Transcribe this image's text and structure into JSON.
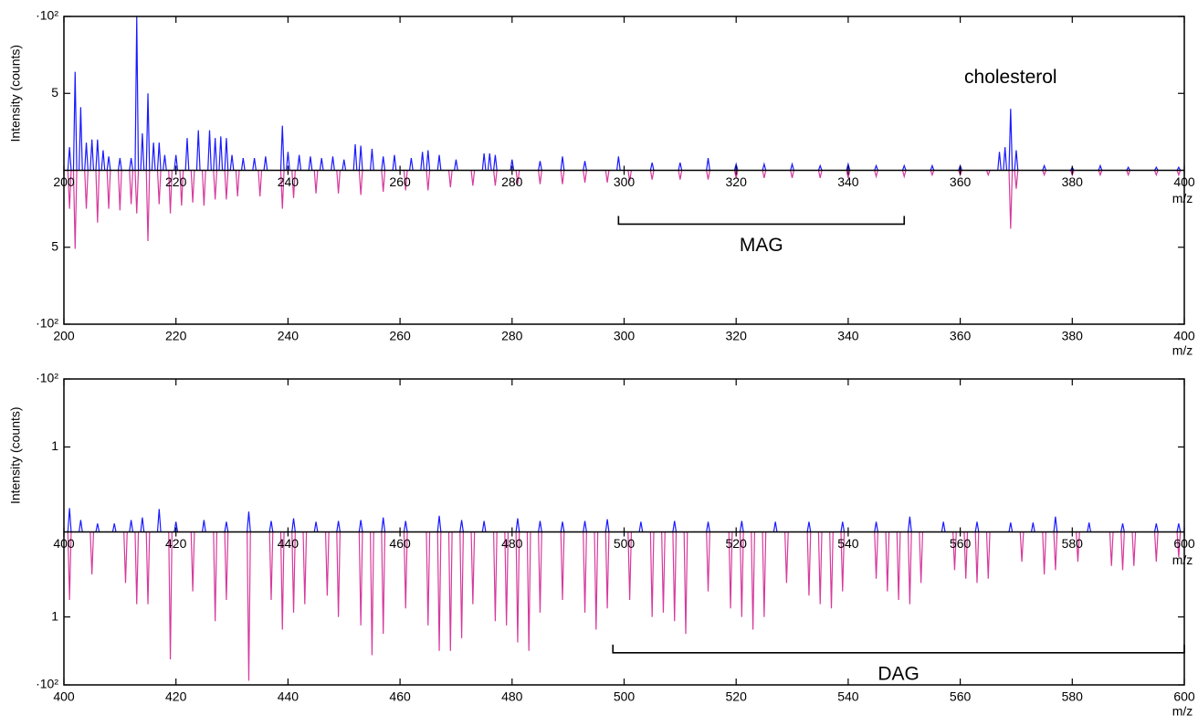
{
  "chart_data": [
    {
      "type": "spectrum",
      "xlabel": "m/z",
      "ylabel": "Intensity (counts)",
      "xlim": [
        200,
        400
      ],
      "xticks": [
        200,
        220,
        240,
        260,
        280,
        300,
        320,
        340,
        360,
        380,
        400
      ],
      "ylim": [
        -10,
        10
      ],
      "yticks": [
        {
          "value": 10,
          "label": "·10²"
        },
        5,
        {
          "value": -5,
          "label": "5"
        },
        {
          "value": -10,
          "label": "·10²"
        }
      ],
      "series": [
        {
          "color": "#1a1aff",
          "x": [
            201,
            202,
            203,
            204,
            205,
            206,
            207,
            208,
            210,
            212,
            213,
            214,
            215,
            216,
            217,
            218,
            220,
            222,
            224,
            226,
            227,
            228,
            229,
            230,
            232,
            234,
            236,
            239,
            240,
            242,
            244,
            246,
            248,
            250,
            252,
            253,
            255,
            257,
            259,
            262,
            264,
            265,
            267,
            270,
            275,
            276,
            277,
            280,
            285,
            289,
            293,
            299,
            305,
            310,
            315,
            320,
            325,
            330,
            335,
            340,
            345,
            350,
            355,
            360,
            367,
            368,
            369,
            370,
            375,
            380,
            385,
            390,
            395,
            399
          ],
          "values": [
            1.5,
            6.4,
            4.1,
            1.8,
            2,
            2,
            1.3,
            0.9,
            0.8,
            0.8,
            10,
            2.4,
            5,
            1.8,
            1.8,
            1,
            1,
            2.1,
            2.6,
            2.6,
            2.1,
            2.2,
            2.1,
            1,
            0.8,
            0.8,
            0.9,
            2.9,
            1.2,
            1,
            0.9,
            0.8,
            0.9,
            0.7,
            1.7,
            1.6,
            1.4,
            0.9,
            1,
            0.8,
            1.2,
            1.3,
            1,
            0.7,
            1.1,
            1.1,
            1,
            0.7,
            0.6,
            0.9,
            0.6,
            0.9,
            0.5,
            0.5,
            0.8,
            0.4,
            0.4,
            0.4,
            0.3,
            0.4,
            0.3,
            0.3,
            0.3,
            0.3,
            1.2,
            1.5,
            4,
            1.3,
            0.3,
            0.2,
            0.3,
            0.2,
            0.2,
            0.2
          ]
        },
        {
          "color": "#d63a9c",
          "x": [
            201,
            202,
            204,
            206,
            208,
            210,
            212,
            213,
            215,
            217,
            219,
            221,
            223,
            225,
            227,
            229,
            231,
            235,
            239,
            241,
            245,
            249,
            253,
            257,
            261,
            265,
            269,
            273,
            277,
            281,
            285,
            289,
            293,
            297,
            301,
            305,
            310,
            315,
            320,
            325,
            330,
            335,
            340,
            345,
            350,
            355,
            360,
            365,
            369,
            370,
            375,
            380,
            385,
            390,
            395,
            399
          ],
          "values": [
            -2.5,
            -5.1,
            -2.5,
            -3.4,
            -2.5,
            -2.6,
            -2.2,
            -2.8,
            -4.6,
            -2.2,
            -2.8,
            -2.3,
            -2.1,
            -2.3,
            -1.9,
            -1.9,
            -1.7,
            -1.7,
            -2.5,
            -1.8,
            -1.5,
            -1.5,
            -1.6,
            -1.4,
            -1.3,
            -1.3,
            -1.1,
            -1,
            -1,
            -0.9,
            -0.9,
            -0.9,
            -0.8,
            -0.8,
            -0.7,
            -0.6,
            -0.6,
            -0.6,
            -0.5,
            -0.5,
            -0.5,
            -0.5,
            -0.5,
            -0.4,
            -0.4,
            -0.3,
            -0.3,
            -0.3,
            -3.8,
            -1.2,
            -0.3,
            -0.3,
            -0.3,
            -0.3,
            -0.3,
            -0.3
          ]
        }
      ],
      "annotations": [
        {
          "text": "cholesterol",
          "x": 369
        },
        {
          "text": "MAG",
          "x": [
            299,
            350
          ]
        }
      ]
    },
    {
      "type": "spectrum",
      "xlabel": "m/z",
      "ylabel": "Intensity (counts)",
      "xlim": [
        400,
        600
      ],
      "xticks": [
        400,
        420,
        440,
        460,
        480,
        500,
        520,
        540,
        560,
        580,
        600
      ],
      "ylim": [
        -1.8,
        1.8
      ],
      "yticks": [
        {
          "value": 1.8,
          "label": "·10²"
        },
        1,
        {
          "value": -1,
          "label": "1"
        },
        {
          "value": -1.8,
          "label": "·10²"
        }
      ],
      "series": [
        {
          "color": "#1a1aff",
          "x": [
            401,
            403,
            406,
            409,
            412,
            414,
            417,
            420,
            425,
            429,
            433,
            437,
            441,
            445,
            449,
            453,
            457,
            461,
            467,
            471,
            475,
            481,
            485,
            489,
            493,
            497,
            503,
            509,
            515,
            521,
            527,
            533,
            539,
            545,
            551,
            557,
            563,
            569,
            573,
            577,
            583,
            589,
            595,
            599
          ],
          "values": [
            0.28,
            0.14,
            0.1,
            0.1,
            0.14,
            0.17,
            0.27,
            0.12,
            0.14,
            0.12,
            0.24,
            0.13,
            0.16,
            0.12,
            0.13,
            0.14,
            0.17,
            0.13,
            0.19,
            0.14,
            0.13,
            0.16,
            0.13,
            0.12,
            0.13,
            0.15,
            0.12,
            0.13,
            0.12,
            0.13,
            0.12,
            0.12,
            0.12,
            0.12,
            0.18,
            0.12,
            0.12,
            0.11,
            0.11,
            0.18,
            0.11,
            0.1,
            0.1,
            0.1
          ]
        },
        {
          "color": "#d63a9c",
          "x": [
            401,
            405,
            411,
            413,
            415,
            419,
            423,
            427,
            429,
            433,
            437,
            439,
            441,
            443,
            447,
            449,
            453,
            455,
            457,
            461,
            465,
            467,
            469,
            471,
            473,
            477,
            479,
            481,
            483,
            485,
            489,
            493,
            495,
            497,
            501,
            505,
            507,
            509,
            511,
            515,
            519,
            521,
            523,
            525,
            529,
            533,
            535,
            537,
            539,
            545,
            547,
            549,
            551,
            553,
            559,
            561,
            563,
            565,
            571,
            575,
            577,
            581,
            587,
            589,
            591,
            595,
            599
          ],
          "values": [
            -0.8,
            -0.5,
            -0.6,
            -0.85,
            -0.85,
            -1.5,
            -0.7,
            -1.05,
            -0.8,
            -1.75,
            -0.8,
            -1.15,
            -0.95,
            -0.85,
            -0.75,
            -1,
            -1.1,
            -1.45,
            -1.2,
            -0.9,
            -1.1,
            -1.4,
            -1.4,
            -1.25,
            -0.85,
            -1.05,
            -1.1,
            -1.3,
            -1.4,
            -0.95,
            -0.8,
            -0.95,
            -1.15,
            -0.9,
            -0.8,
            -1,
            -0.95,
            -1.05,
            -1.2,
            -0.7,
            -0.9,
            -1,
            -1.15,
            -1,
            -0.6,
            -0.75,
            -0.85,
            -0.9,
            -0.7,
            -0.55,
            -0.7,
            -0.8,
            -0.85,
            -0.6,
            -0.45,
            -0.55,
            -0.6,
            -0.55,
            -0.35,
            -0.5,
            -0.45,
            -0.35,
            -0.4,
            -0.45,
            -0.4,
            -0.35,
            -0.3
          ]
        }
      ],
      "annotations": [
        {
          "text": "DAG",
          "x": [
            498,
            600
          ]
        }
      ]
    }
  ]
}
